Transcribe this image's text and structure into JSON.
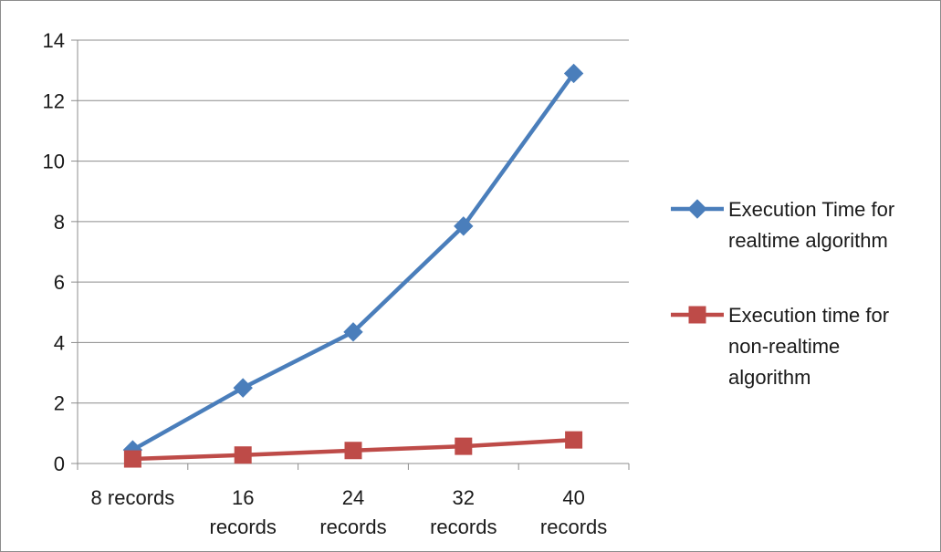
{
  "chart_data": {
    "type": "line",
    "categories": [
      "8 records",
      "16 records",
      "24 records",
      "32 records",
      "40 records"
    ],
    "category_lines": [
      [
        "8 records"
      ],
      [
        "16",
        "records"
      ],
      [
        "24",
        "records"
      ],
      [
        "32",
        "records"
      ],
      [
        "40",
        "records"
      ]
    ],
    "series": [
      {
        "name": "Execution Time for realtime algorithm",
        "legend_lines": [
          "Execution Time for",
          "realtime algorithm"
        ],
        "values": [
          0.45,
          2.5,
          4.35,
          7.85,
          12.9
        ],
        "color": "#4a7ebb",
        "marker": "diamond"
      },
      {
        "name": "Execution time for non-realtime algorithm",
        "legend_lines": [
          "Execution time for",
          "non-realtime",
          "algorithm"
        ],
        "values": [
          0.15,
          0.28,
          0.43,
          0.57,
          0.78
        ],
        "color": "#be4b48",
        "marker": "square"
      }
    ],
    "title": "",
    "xlabel": "",
    "ylabel": "",
    "ylim": [
      0,
      14
    ],
    "yticks": [
      0,
      2,
      4,
      6,
      8,
      10,
      12,
      14
    ],
    "grid": true,
    "legend_position": "right"
  }
}
